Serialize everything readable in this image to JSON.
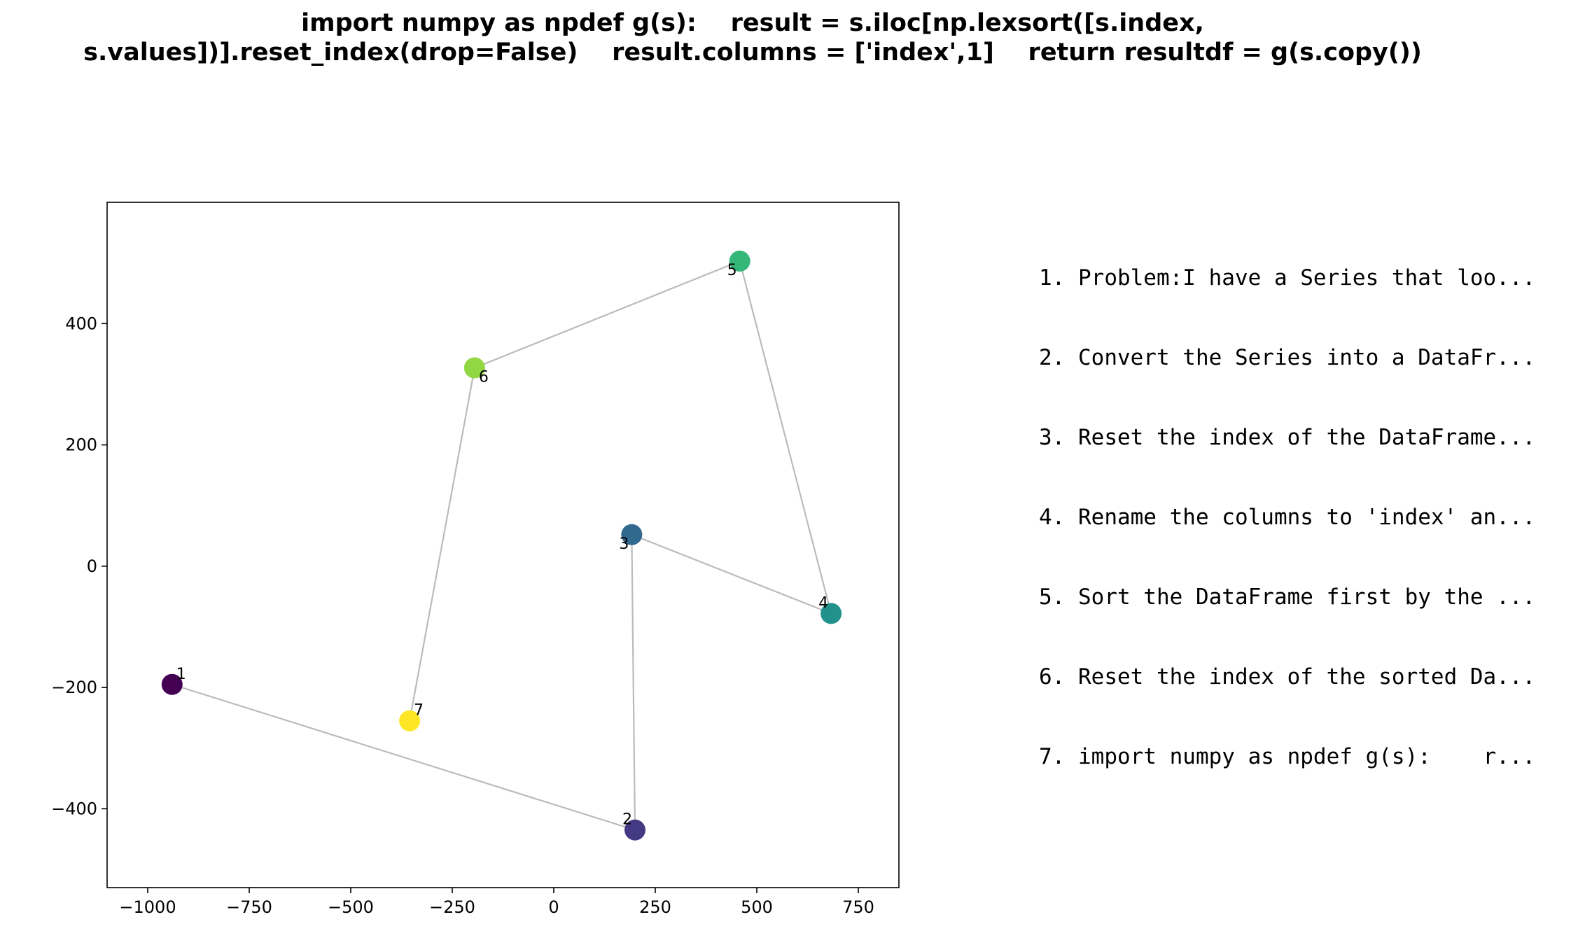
{
  "title": {
    "line1": "import numpy as npdef g(s):    result = s.iloc[np.lexsort([s.index,",
    "line2": "s.values])].reset_index(drop=False)    result.columns = ['index',1]    return resultdf = g(s.copy())"
  },
  "steps": [
    "1. Problem:I have a Series that loo...",
    "2. Convert the Series into a DataFr...",
    "3. Reset the index of the DataFrame...",
    "4. Rename the columns to 'index' an...",
    "5. Sort the DataFrame first by the ...",
    "6. Reset the index of the sorted Da...",
    "7. import numpy as npdef g(s):    r..."
  ],
  "chart_data": {
    "type": "scatter",
    "connected": true,
    "line_color": "#bbbbbb",
    "xlim": [
      -1100,
      850
    ],
    "ylim": [
      -530,
      600
    ],
    "xticks": [
      -1000,
      -750,
      -500,
      -250,
      0,
      250,
      500,
      750
    ],
    "xtick_labels": [
      "−1000",
      "−750",
      "−500",
      "−250",
      "0",
      "250",
      "500",
      "750"
    ],
    "yticks": [
      -400,
      -200,
      0,
      200,
      400
    ],
    "ytick_labels": [
      "−400",
      "−200",
      "0",
      "200",
      "400"
    ],
    "grid": false,
    "points": [
      {
        "label": "1",
        "x": -940,
        "y": -195,
        "color": "#440154",
        "label_side": "upper-right"
      },
      {
        "label": "2",
        "x": 200,
        "y": -435,
        "color": "#443983",
        "label_side": "upper-left"
      },
      {
        "label": "3",
        "x": 192,
        "y": 52,
        "color": "#31688e",
        "label_side": "lower-left"
      },
      {
        "label": "4",
        "x": 683,
        "y": -78,
        "color": "#21918c",
        "label_side": "upper-left"
      },
      {
        "label": "5",
        "x": 458,
        "y": 503,
        "color": "#35b779",
        "label_side": "lower-left"
      },
      {
        "label": "6",
        "x": -195,
        "y": 327,
        "color": "#90d743",
        "label_side": "lower-right"
      },
      {
        "label": "7",
        "x": -355,
        "y": -255,
        "color": "#fde725",
        "label_side": "upper-right"
      }
    ]
  }
}
